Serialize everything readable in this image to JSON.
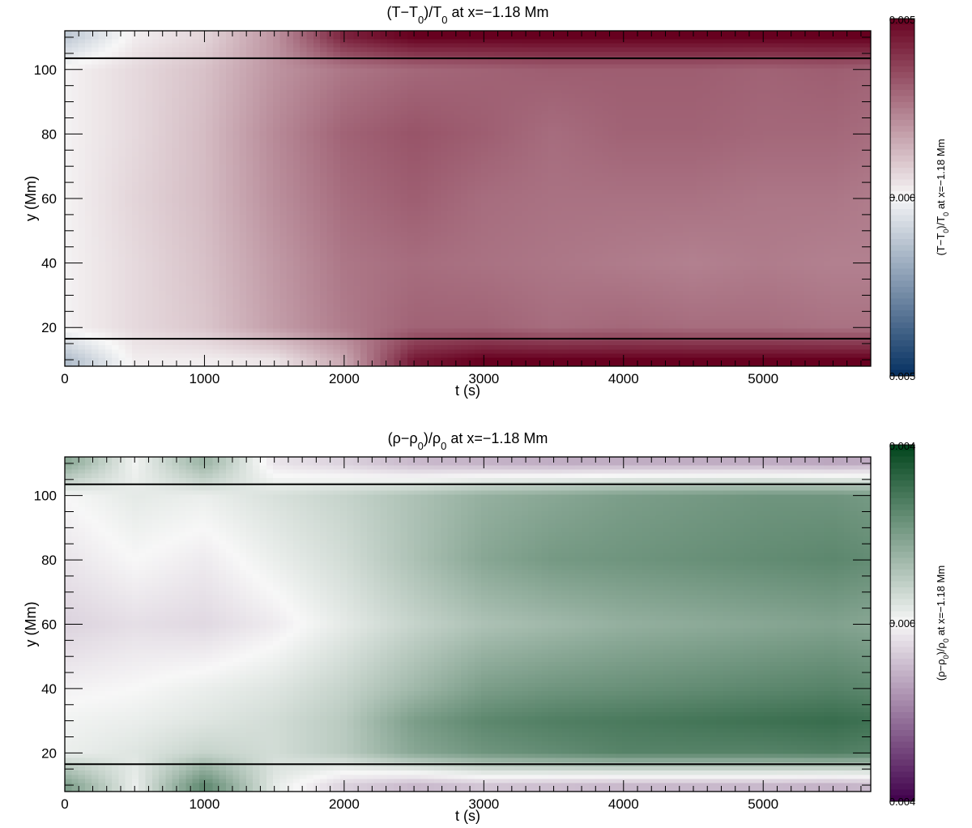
{
  "chart_data": [
    {
      "type": "heatmap",
      "title_parts": [
        "(T−T",
        "0",
        ")/T",
        "0",
        " at x=−1.18 Mm"
      ],
      "xlabel": "t (s)",
      "ylabel": "y (Mm)",
      "xlim": [
        0,
        5770
      ],
      "ylim": [
        8,
        112
      ],
      "xticks": [
        0,
        1000,
        2000,
        3000,
        4000,
        5000
      ],
      "yticks": [
        20,
        40,
        60,
        80,
        100
      ],
      "xtick_labels": [
        "0",
        "1000",
        "2000",
        "3000",
        "4000",
        "5000"
      ],
      "ytick_labels": [
        "20",
        "40",
        "60",
        "80",
        "100"
      ],
      "horizontal_lines_y": [
        16.5,
        103.5
      ],
      "colorbar": {
        "min": -0.005,
        "max": 0.005,
        "tick_labels": [
          "0.005",
          "0.000",
          "0.005"
        ],
        "label_parts": [
          "(T−T",
          "0",
          ")/T",
          "0",
          " at x=−1.18 Mm"
        ],
        "colors_low_mid_high": [
          "#053061",
          "#f7f7f7",
          "#67001f"
        ],
        "colormap": "RdBu_r"
      },
      "description_grid": {
        "t": [
          0,
          500,
          1000,
          1500,
          2000,
          2500,
          3000,
          3500,
          4000,
          4500,
          5000,
          5500,
          5770
        ],
        "y": [
          10,
          20,
          40,
          60,
          80,
          100,
          110
        ],
        "values": [
          [
            -0.0015,
            0.0002,
            0.0002,
            0.0004,
            0.0016,
            0.0045,
            0.005,
            0.005,
            0.005,
            0.005,
            0.005,
            0.005,
            0.005
          ],
          [
            0.0001,
            0.0006,
            0.001,
            0.0018,
            0.0025,
            0.003,
            0.003,
            0.0028,
            0.0029,
            0.0028,
            0.0028,
            0.0027,
            0.0027
          ],
          [
            0.0001,
            0.0006,
            0.0011,
            0.0019,
            0.0026,
            0.0028,
            0.0027,
            0.0026,
            0.0025,
            0.0024,
            0.0025,
            0.0024,
            0.0024
          ],
          [
            0.0001,
            0.0007,
            0.0012,
            0.0021,
            0.0028,
            0.0031,
            0.0028,
            0.0027,
            0.0027,
            0.0027,
            0.0026,
            0.0026,
            0.0025
          ],
          [
            0.0001,
            0.0006,
            0.0012,
            0.0022,
            0.003,
            0.0033,
            0.0031,
            0.0028,
            0.003,
            0.003,
            0.0029,
            0.0029,
            0.0028
          ],
          [
            0.0001,
            0.0006,
            0.0011,
            0.002,
            0.0026,
            0.0029,
            0.003,
            0.0031,
            0.0031,
            0.0031,
            0.003,
            0.0031,
            0.003
          ],
          [
            -0.0012,
            0.0002,
            0.0007,
            0.002,
            0.0043,
            0.005,
            0.005,
            0.005,
            0.005,
            0.005,
            0.005,
            0.005,
            0.005
          ]
        ]
      }
    },
    {
      "type": "heatmap",
      "title_parts": [
        "(ρ−ρ",
        "0",
        ")/ρ",
        "0",
        " at x=−1.18 Mm"
      ],
      "xlabel": "t (s)",
      "ylabel": "y (Mm)",
      "xlim": [
        0,
        5770
      ],
      "ylim": [
        8,
        112
      ],
      "xticks": [
        0,
        1000,
        2000,
        3000,
        4000,
        5000
      ],
      "yticks": [
        20,
        40,
        60,
        80,
        100
      ],
      "xtick_labels": [
        "0",
        "1000",
        "2000",
        "3000",
        "4000",
        "5000"
      ],
      "ytick_labels": [
        "20",
        "40",
        "60",
        "80",
        "100"
      ],
      "horizontal_lines_y": [
        16.5,
        103.5
      ],
      "colorbar": {
        "min": -0.004,
        "max": 0.004,
        "tick_labels": [
          "0.004",
          "0.000",
          "0.004"
        ],
        "label_parts": [
          "(ρ−ρ",
          "0",
          ")/ρ",
          "0",
          " at x=−1.18 Mm"
        ],
        "colors_low_mid_high": [
          "#40004b",
          "#f7f7f7",
          "#00441b"
        ],
        "colormap": "PRGn"
      },
      "description_grid": {
        "t": [
          0,
          500,
          1000,
          1500,
          2000,
          2500,
          3000,
          3500,
          4000,
          4500,
          5000,
          5500,
          5770
        ],
        "y": [
          10,
          20,
          30,
          40,
          60,
          80,
          100,
          110
        ],
        "values": [
          [
            0.002,
            0.0002,
            0.0025,
            0.0003,
            -0.0006,
            -0.001,
            -0.0008,
            -0.0009,
            -0.001,
            -0.001,
            -0.001,
            -0.0011,
            -0.001
          ],
          [
            0.0002,
            0.0004,
            0.0008,
            0.0006,
            0.001,
            0.0018,
            0.0022,
            0.0024,
            0.0026,
            0.0026,
            0.0026,
            0.0027,
            0.0026
          ],
          [
            0.0001,
            0.0002,
            0.0004,
            0.0006,
            0.001,
            0.002,
            0.0025,
            0.0027,
            0.0028,
            0.0029,
            0.003,
            0.0031,
            0.003
          ],
          [
            -0.0001,
            0.0,
            0.0002,
            0.0004,
            0.0008,
            0.0014,
            0.002,
            0.0022,
            0.0023,
            0.0024,
            0.0025,
            0.0026,
            0.0025
          ],
          [
            -0.0006,
            -0.0004,
            -0.0005,
            -0.0002,
            0.0003,
            0.0008,
            0.0012,
            0.0014,
            0.0016,
            0.0017,
            0.0018,
            0.0019,
            0.0018
          ],
          [
            -0.0003,
            0.0,
            -0.0002,
            0.0002,
            0.0006,
            0.0012,
            0.0018,
            0.0021,
            0.0022,
            0.0023,
            0.0024,
            0.0025,
            0.0024
          ],
          [
            0.0,
            0.0003,
            0.0002,
            0.0005,
            0.0008,
            0.0012,
            0.0016,
            0.0018,
            0.002,
            0.0021,
            0.0022,
            0.0022,
            0.0021
          ],
          [
            0.0018,
            0.0001,
            0.0015,
            -0.0003,
            -0.0006,
            -0.001,
            -0.0011,
            -0.0012,
            -0.0012,
            -0.0012,
            -0.0012,
            -0.0013,
            -0.0012
          ]
        ]
      }
    }
  ]
}
